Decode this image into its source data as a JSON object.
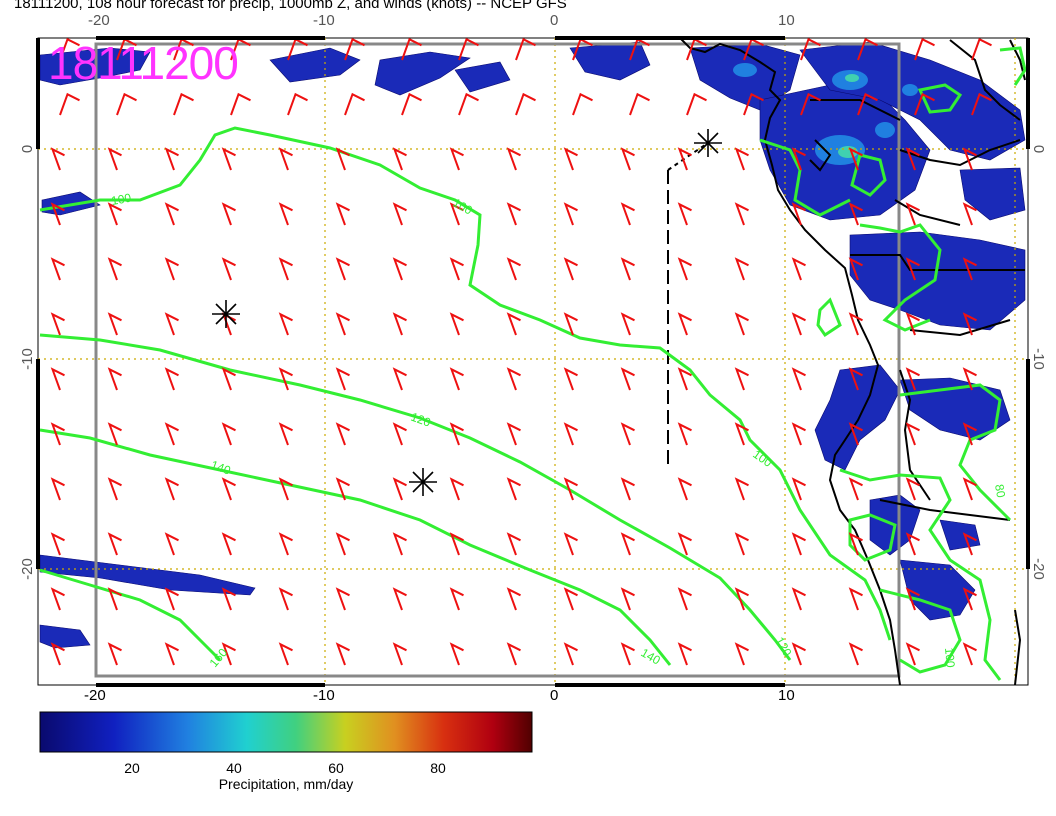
{
  "title": "18111200, 108 hour forecast for precip, 1000mb Z, and winds (knots) -- NCEP GFS",
  "stamp": "18111200",
  "map": {
    "lon_ticks_top": [
      "-20",
      "-10",
      "0",
      "10"
    ],
    "lon_ticks_bottom": [
      "-20",
      "-10",
      "0",
      "10"
    ],
    "lat_ticks_left": [
      "0",
      "-10",
      "-20"
    ],
    "lat_ticks_right": [
      "0",
      "-10",
      "-20"
    ],
    "contour_labels": [
      "100",
      "100",
      "100",
      "120",
      "140",
      "140",
      "160",
      "120",
      "80",
      "100"
    ],
    "colors": {
      "contour": "#33ee33",
      "wind_barb": "#ee1111",
      "grid": "#ccaa00",
      "coast": "#000000",
      "stamp": "#ff33ff"
    }
  },
  "colorbar": {
    "title": "Precipitation, mm/day",
    "ticks": [
      "20",
      "40",
      "60",
      "80"
    ],
    "range": [
      2,
      98
    ]
  }
}
